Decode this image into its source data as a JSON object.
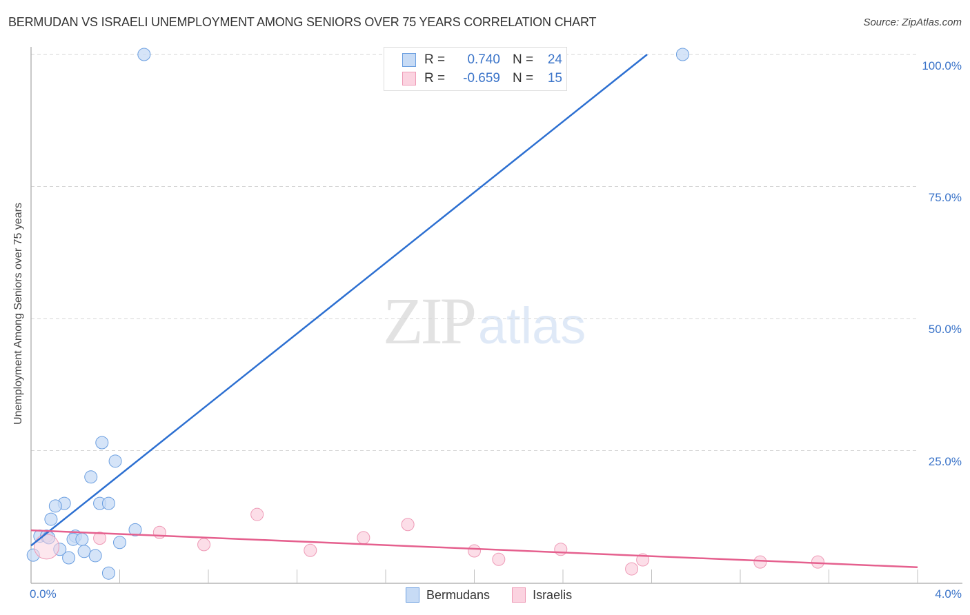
{
  "header": {
    "title": "BERMUDAN VS ISRAELI UNEMPLOYMENT AMONG SENIORS OVER 75 YEARS CORRELATION CHART",
    "source": "Source: ZipAtlas.com"
  },
  "watermark": {
    "zip": "ZIP",
    "atlas": "atlas"
  },
  "axes": {
    "ylabel": "Unemployment Among Seniors over 75 years",
    "yticks": [
      "100.0%",
      "75.0%",
      "50.0%",
      "25.0%"
    ],
    "xticks": {
      "min_label": "0.0%",
      "max_label": "4.0%"
    }
  },
  "legend": {
    "rows": [
      {
        "r_label": "R =",
        "r_value": "0.740",
        "n_label": "N =",
        "n_value": "24",
        "color": "#a8c8f0"
      },
      {
        "r_label": "R =",
        "r_value": "-0.659",
        "n_label": "N =",
        "n_value": "15",
        "color": "#f8bcd0"
      }
    ],
    "series": [
      {
        "label": "Bermudans",
        "color": "#a8c8f0"
      },
      {
        "label": "Israelis",
        "color": "#f8bcd0"
      }
    ]
  },
  "colors": {
    "blue_point_fill": "#c7dbf5",
    "blue_point_stroke": "#6a9ee0",
    "blue_line": "#2c6fd1",
    "pink_point_fill": "#fbd3e0",
    "pink_point_stroke": "#ee9ab6",
    "pink_line": "#e5608e",
    "tick_text": "#3b74c9"
  },
  "chart_data": {
    "type": "scatter",
    "title": "BERMUDAN VS ISRAELI UNEMPLOYMENT AMONG SENIORS OVER 75 YEARS CORRELATION CHART",
    "xlabel": "",
    "ylabel": "Unemployment Among Seniors over 75 years",
    "xlim": [
      0,
      4.0
    ],
    "ylim": [
      0,
      100
    ],
    "x_unit": "%",
    "y_unit": "%",
    "yticks": [
      25,
      50,
      75,
      100
    ],
    "grid": "horizontal dashed",
    "legend_position": "top-center and bottom-center",
    "series": [
      {
        "name": "Bermudans",
        "R": 0.74,
        "N": 24,
        "points": [
          {
            "x": 0.51,
            "y": 100.0
          },
          {
            "x": 2.94,
            "y": 100.0
          },
          {
            "x": 0.32,
            "y": 26.5
          },
          {
            "x": 0.38,
            "y": 23.0
          },
          {
            "x": 0.27,
            "y": 20.0
          },
          {
            "x": 0.15,
            "y": 15.0
          },
          {
            "x": 0.11,
            "y": 14.5
          },
          {
            "x": 0.31,
            "y": 15.0
          },
          {
            "x": 0.35,
            "y": 15.0
          },
          {
            "x": 0.09,
            "y": 12.0
          },
          {
            "x": 0.47,
            "y": 10.0
          },
          {
            "x": 0.04,
            "y": 8.8
          },
          {
            "x": 0.07,
            "y": 8.8
          },
          {
            "x": 0.2,
            "y": 8.8
          },
          {
            "x": 0.19,
            "y": 8.2
          },
          {
            "x": 0.23,
            "y": 8.2
          },
          {
            "x": 0.4,
            "y": 7.6
          },
          {
            "x": 0.13,
            "y": 6.3
          },
          {
            "x": 0.24,
            "y": 5.9
          },
          {
            "x": 0.29,
            "y": 5.1
          },
          {
            "x": 0.17,
            "y": 4.7
          },
          {
            "x": 0.01,
            "y": 5.2
          },
          {
            "x": 0.35,
            "y": 1.8
          },
          {
            "x": 0.08,
            "y": 8.5
          }
        ],
        "trendline": {
          "x0": 0.0,
          "y0": 7.0,
          "x1": 2.78,
          "y1": 100.0
        }
      },
      {
        "name": "Israelis",
        "R": -0.659,
        "N": 15,
        "points": [
          {
            "x": 0.07,
            "y": 6.8
          },
          {
            "x": 0.31,
            "y": 8.4
          },
          {
            "x": 0.58,
            "y": 9.5
          },
          {
            "x": 0.78,
            "y": 7.2
          },
          {
            "x": 1.02,
            "y": 12.9
          },
          {
            "x": 1.26,
            "y": 6.1
          },
          {
            "x": 1.5,
            "y": 8.5
          },
          {
            "x": 1.7,
            "y": 11.0
          },
          {
            "x": 2.0,
            "y": 6.0
          },
          {
            "x": 2.11,
            "y": 4.4
          },
          {
            "x": 2.39,
            "y": 6.3
          },
          {
            "x": 2.71,
            "y": 2.6
          },
          {
            "x": 2.76,
            "y": 4.3
          },
          {
            "x": 3.29,
            "y": 3.9
          },
          {
            "x": 3.55,
            "y": 3.9
          }
        ],
        "trendline": {
          "x0": 0.0,
          "y0": 9.9,
          "x1": 4.0,
          "y1": 2.9
        }
      }
    ]
  }
}
